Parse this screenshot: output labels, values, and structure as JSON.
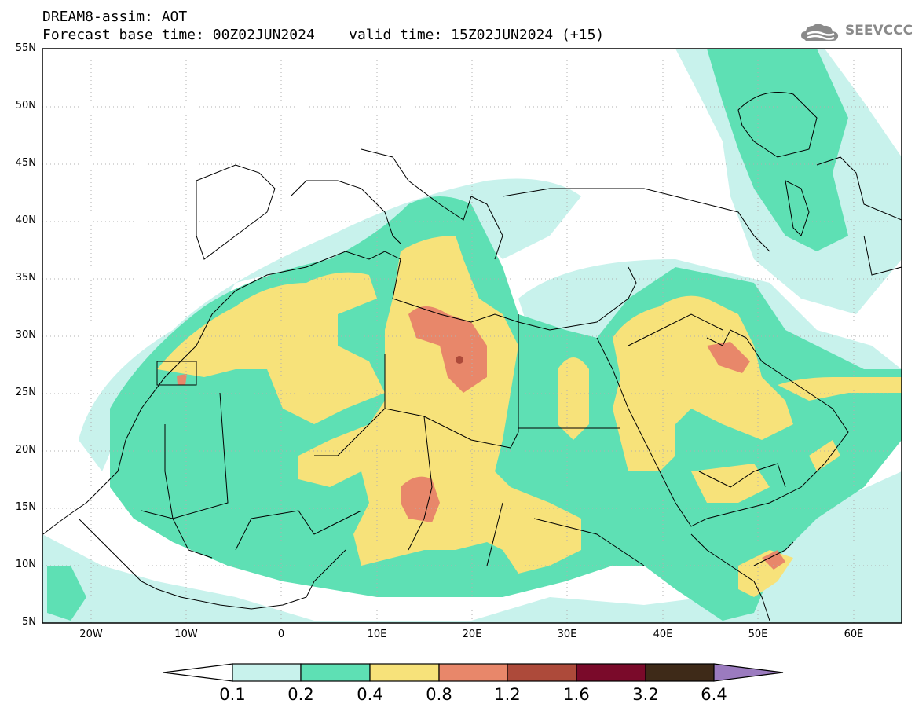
{
  "header": {
    "line1": "DREAM8-assim: AOT",
    "line2": "Forecast base time: 00Z02JUN2024    valid time: 15Z02JUN2024 (+15)",
    "logo_text": "SEEVCCC"
  },
  "map": {
    "lat_labels": [
      "55N",
      "50N",
      "45N",
      "40N",
      "35N",
      "30N",
      "25N",
      "20N",
      "15N",
      "10N",
      "5N"
    ],
    "lon_labels": [
      "20W",
      "10W",
      "0",
      "10E",
      "20E",
      "30E",
      "40E",
      "50E",
      "60E"
    ],
    "colors": {
      "c1": "#c8f2ec",
      "c2": "#5ee0b4",
      "c3": "#f7e27a",
      "c4": "#e8876a",
      "c5": "#ad4a3a",
      "c6": "#7a0a2a",
      "c7": "#3e2a18",
      "c8": "#9b7bbf"
    }
  },
  "colorbar": {
    "labels": [
      "0.1",
      "0.2",
      "0.4",
      "0.8",
      "1.2",
      "1.6",
      "3.2",
      "6.4"
    ]
  }
}
